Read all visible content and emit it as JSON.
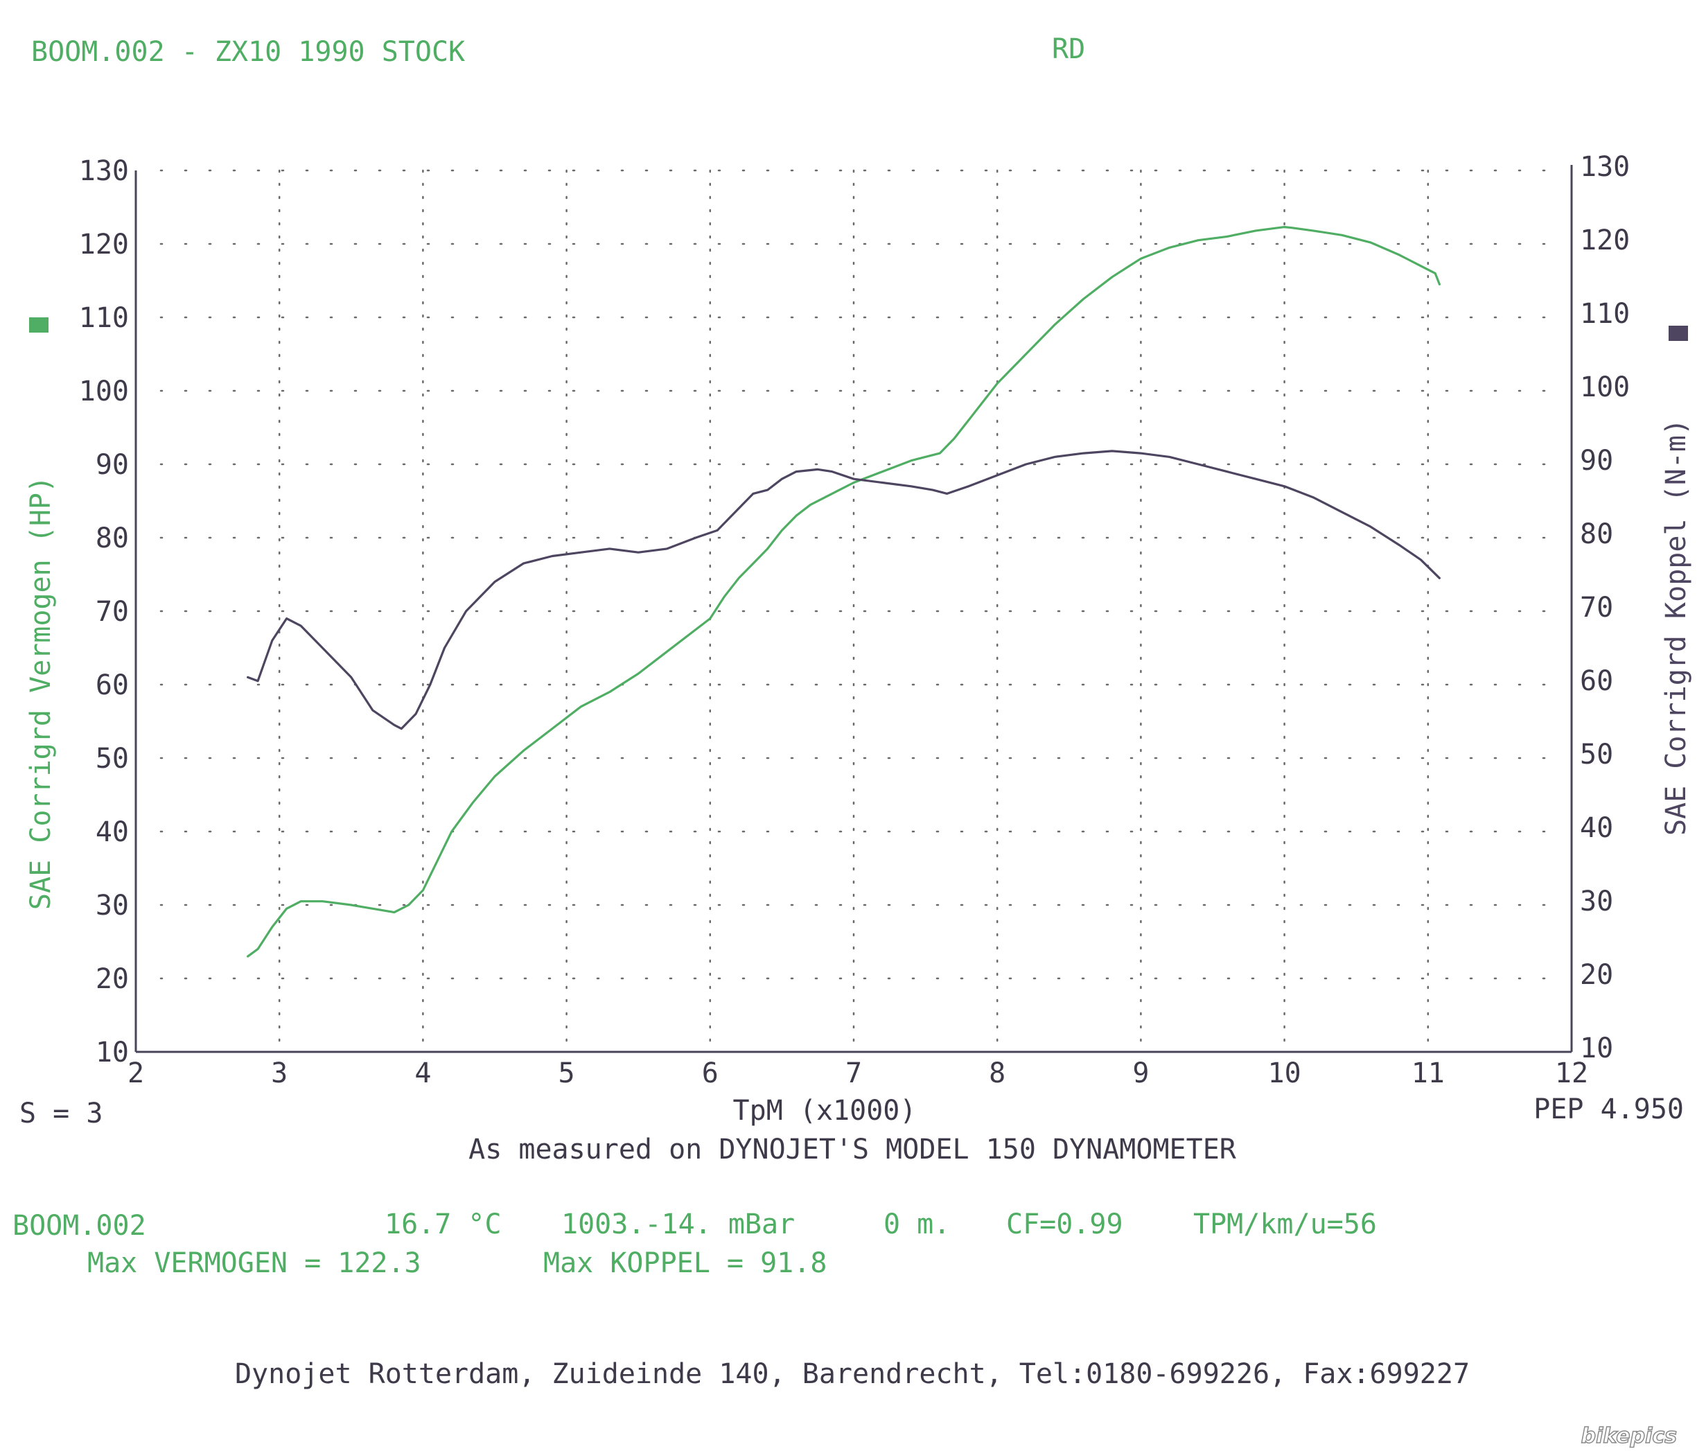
{
  "header": {
    "title": "BOOM.002 - ZX10 1990 STOCK",
    "code": "RD"
  },
  "chart_data": {
    "type": "line",
    "xlabel": "TpM (x1000)",
    "ylabel_left": "SAE Corrigrd Vermogen (HP)",
    "ylabel_right": "SAE Corrigrd Koppel (N-m)",
    "xlim": [
      2,
      12
    ],
    "ylim": [
      10,
      130
    ],
    "x_ticks": [
      "2",
      "3",
      "4",
      "5",
      "6",
      "7",
      "8",
      "9",
      "10",
      "11",
      "12"
    ],
    "y_ticks": [
      "10",
      "20",
      "30",
      "40",
      "50",
      "60",
      "70",
      "80",
      "90",
      "100",
      "110",
      "120",
      "130"
    ],
    "grid": true,
    "colors": {
      "power": "#4fae63",
      "torque": "#4e4560"
    },
    "series": [
      {
        "key": "power",
        "x": [
          2.78,
          2.85,
          2.95,
          3.05,
          3.15,
          3.3,
          3.5,
          3.65,
          3.8,
          3.9,
          4.0,
          4.1,
          4.2,
          4.35,
          4.5,
          4.7,
          4.9,
          5.1,
          5.3,
          5.5,
          5.7,
          5.9,
          6.0,
          6.1,
          6.2,
          6.3,
          6.4,
          6.5,
          6.6,
          6.7,
          6.8,
          6.9,
          7.0,
          7.2,
          7.4,
          7.6,
          7.7,
          7.8,
          8.0,
          8.2,
          8.4,
          8.6,
          8.8,
          9.0,
          9.2,
          9.4,
          9.6,
          9.8,
          10.0,
          10.05,
          10.2,
          10.4,
          10.6,
          10.8,
          10.95,
          11.05,
          11.08
        ],
        "values": [
          23,
          24,
          27,
          29.5,
          30.5,
          30.5,
          30,
          29.5,
          29,
          30,
          32,
          36,
          40,
          44,
          47.5,
          51,
          54,
          57,
          59,
          61.5,
          64.5,
          67.5,
          69,
          72,
          74.5,
          76.5,
          78.5,
          81,
          83,
          84.5,
          85.5,
          86.5,
          87.5,
          89,
          90.5,
          91.5,
          93.5,
          96,
          101,
          105,
          109,
          112.5,
          115.5,
          118,
          119.5,
          120.5,
          121,
          121.8,
          122.3,
          122.2,
          121.8,
          121.2,
          120.2,
          118.5,
          117,
          116,
          114.5
        ]
      },
      {
        "key": "torque",
        "x": [
          2.78,
          2.85,
          2.95,
          3.05,
          3.15,
          3.3,
          3.5,
          3.65,
          3.8,
          3.85,
          3.95,
          4.05,
          4.15,
          4.3,
          4.5,
          4.7,
          4.9,
          5.1,
          5.3,
          5.5,
          5.7,
          5.9,
          6.05,
          6.2,
          6.3,
          6.4,
          6.5,
          6.6,
          6.75,
          6.85,
          7.0,
          7.2,
          7.4,
          7.55,
          7.65,
          7.8,
          8.0,
          8.2,
          8.4,
          8.6,
          8.8,
          9.0,
          9.2,
          9.4,
          9.6,
          9.8,
          10.0,
          10.2,
          10.4,
          10.6,
          10.8,
          10.95,
          11.08
        ],
        "values": [
          61,
          60.5,
          66,
          69,
          68,
          65,
          61,
          56.5,
          54.5,
          54,
          56,
          60,
          65,
          70,
          74,
          76.5,
          77.5,
          78,
          78.5,
          78,
          78.5,
          80,
          81,
          84,
          86,
          86.5,
          88,
          89,
          89.3,
          89,
          88,
          87.5,
          87,
          86.5,
          86,
          87,
          88.5,
          90,
          91,
          91.5,
          91.8,
          91.5,
          91,
          90,
          89,
          88,
          87,
          85.5,
          83.5,
          81.5,
          79,
          77,
          74.5
        ]
      }
    ]
  },
  "footer": {
    "smoothing": "S = 3",
    "pep": "PEP 4.950",
    "measured_note": "As measured on DYNOJET'S MODEL 150 DYNAMOMETER",
    "run_id": "BOOM.002",
    "temperature": "16.7 °C",
    "pressure": "1003.-14. mBar",
    "altitude": "0 m.",
    "cf": "CF=0.99",
    "tpm_ratio": "TPM/km/u=56",
    "max_power": "Max VERMOGEN = 122.3",
    "max_torque": "Max KOPPEL = 91.8",
    "address": "Dynojet Rotterdam, Zuideinde 140, Barendrecht, Tel:0180-699226, Fax:699227",
    "watermark": "bikepics"
  }
}
